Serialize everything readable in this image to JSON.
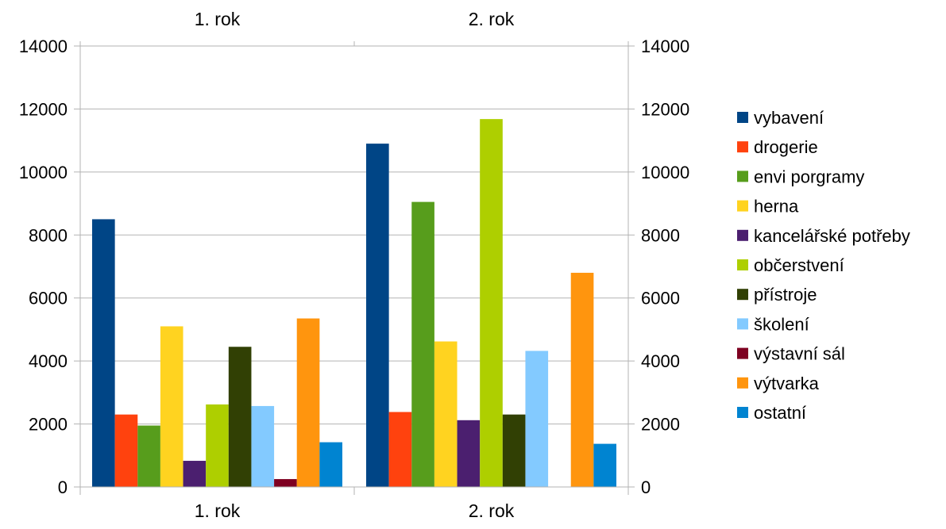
{
  "chart_data": {
    "type": "bar",
    "categories": [
      "1. rok",
      "2. rok"
    ],
    "y_ticks": [
      "0",
      "2000",
      "4000",
      "6000",
      "8000",
      "10000",
      "12000",
      "14000"
    ],
    "ylim": [
      0,
      14000
    ],
    "grid": true,
    "legend_position": "right",
    "secondary_axes": true,
    "series": [
      {
        "name": "vybavení",
        "color": "#004586",
        "values": [
          8500,
          10900
        ]
      },
      {
        "name": "drogerie",
        "color": "#ff420e",
        "values": [
          2300,
          2380
        ]
      },
      {
        "name": "envi porgramy",
        "color": "#579d1c",
        "values": [
          1950,
          9050
        ]
      },
      {
        "name": "herna",
        "color": "#ffd320",
        "values": [
          5100,
          4620
        ]
      },
      {
        "name": "kancelářské potřeby",
        "color": "#4b1f6f",
        "values": [
          830,
          2120
        ]
      },
      {
        "name": "občerstvení",
        "color": "#aecf00",
        "values": [
          2620,
          11680
        ]
      },
      {
        "name": "přístroje",
        "color": "#314004",
        "values": [
          4450,
          2300
        ]
      },
      {
        "name": "školení",
        "color": "#83caff",
        "values": [
          2570,
          4320
        ]
      },
      {
        "name": "výstavní sál",
        "color": "#7e0021",
        "values": [
          250,
          0
        ]
      },
      {
        "name": "výtvarka",
        "color": "#ff950e",
        "values": [
          5350,
          6800
        ]
      },
      {
        "name": "ostatní",
        "color": "#0084d1",
        "values": [
          1420,
          1370
        ]
      }
    ]
  }
}
